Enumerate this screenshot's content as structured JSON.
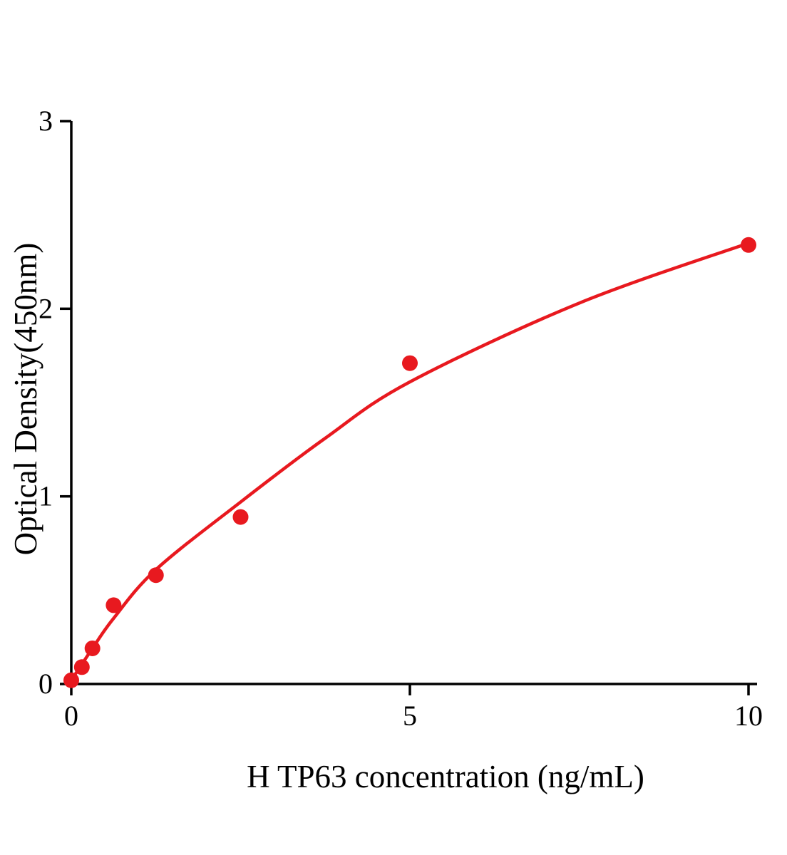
{
  "chart_data": {
    "type": "scatter",
    "title": "",
    "xlabel": "H TP63 concentration (ng/mL)",
    "ylabel": "Optical Density(450nm)",
    "xlim": [
      0,
      10
    ],
    "ylim": [
      0,
      3
    ],
    "x_ticks": [
      0,
      5,
      10
    ],
    "y_ticks": [
      0,
      1,
      2,
      3
    ],
    "grid": false,
    "legend": false,
    "accent_color": "#e8191f",
    "axis_color": "#000000",
    "series": [
      {
        "name": "standard-points",
        "type": "scatter",
        "color": "#e8191f",
        "x": [
          0,
          0.156,
          0.3125,
          0.625,
          1.25,
          2.5,
          5,
          10
        ],
        "y": [
          0.02,
          0.09,
          0.19,
          0.42,
          0.58,
          0.89,
          1.71,
          2.34
        ]
      },
      {
        "name": "fit-curve",
        "type": "line",
        "color": "#e8191f",
        "x": [
          0,
          0.3125,
          0.625,
          1.25,
          2.5,
          3.75,
          5,
          7.5,
          10
        ],
        "y": [
          0.02,
          0.19,
          0.35,
          0.61,
          0.97,
          1.31,
          1.61,
          2.03,
          2.35
        ]
      }
    ]
  }
}
